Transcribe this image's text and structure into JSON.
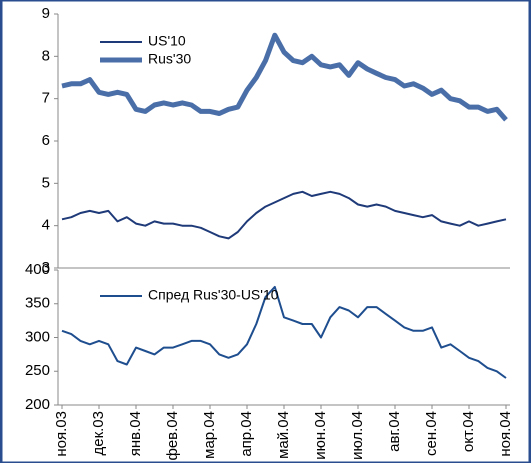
{
  "chart_data": [
    {
      "type": "line",
      "ylim": [
        3,
        9
      ],
      "yticks": [
        3,
        4,
        5,
        6,
        7,
        8,
        9
      ],
      "series": [
        {
          "name": "US'10",
          "color": "#1f3a78",
          "width": 2,
          "values": [
            4.15,
            4.2,
            4.3,
            4.35,
            4.3,
            4.35,
            4.1,
            4.2,
            4.05,
            4.0,
            4.1,
            4.05,
            4.05,
            4.0,
            4.0,
            3.95,
            3.85,
            3.75,
            3.7,
            3.85,
            4.1,
            4.3,
            4.45,
            4.55,
            4.65,
            4.75,
            4.8,
            4.7,
            4.75,
            4.8,
            4.75,
            4.65,
            4.5,
            4.45,
            4.5,
            4.45,
            4.35,
            4.3,
            4.25,
            4.2,
            4.25,
            4.1,
            4.05,
            4.0,
            4.1,
            4.0,
            4.05,
            4.1,
            4.15
          ]
        },
        {
          "name": "Rus'30",
          "color": "#4a6fa8",
          "width": 5,
          "values": [
            7.3,
            7.35,
            7.35,
            7.45,
            7.15,
            7.1,
            7.15,
            7.1,
            6.75,
            6.7,
            6.85,
            6.9,
            6.85,
            6.9,
            6.85,
            6.7,
            6.7,
            6.65,
            6.75,
            6.8,
            7.2,
            7.5,
            7.9,
            8.5,
            8.1,
            7.9,
            7.85,
            8.0,
            7.8,
            7.75,
            7.8,
            7.55,
            7.85,
            7.7,
            7.6,
            7.5,
            7.45,
            7.3,
            7.35,
            7.25,
            7.1,
            7.2,
            7.0,
            6.95,
            6.8,
            6.8,
            6.7,
            6.75,
            6.5
          ]
        }
      ]
    },
    {
      "type": "line",
      "ylim": [
        200,
        400
      ],
      "yticks": [
        200,
        250,
        300,
        350,
        400
      ],
      "categories": [
        "ноя.03",
        null,
        null,
        null,
        "дек.03",
        null,
        null,
        null,
        "янв.04",
        null,
        null,
        null,
        "фев.04",
        null,
        null,
        null,
        "мар.04",
        null,
        null,
        null,
        "апр.04",
        null,
        null,
        null,
        "май.04",
        null,
        null,
        null,
        "июн.04",
        null,
        null,
        null,
        "июл.04",
        null,
        null,
        null,
        "авг.04",
        null,
        null,
        null,
        "сен.04",
        null,
        null,
        null,
        "окт.04",
        null,
        null,
        null,
        "ноя.04"
      ],
      "series": [
        {
          "name": "Спред Rus'30-US'10",
          "color": "#1f4e8f",
          "width": 2,
          "values": [
            310,
            305,
            295,
            290,
            295,
            290,
            265,
            260,
            285,
            280,
            275,
            285,
            285,
            290,
            295,
            295,
            290,
            275,
            270,
            275,
            290,
            320,
            360,
            375,
            330,
            325,
            320,
            320,
            300,
            330,
            345,
            340,
            330,
            345,
            345,
            335,
            325,
            315,
            310,
            310,
            315,
            285,
            290,
            280,
            270,
            265,
            255,
            250,
            240
          ]
        }
      ]
    }
  ]
}
